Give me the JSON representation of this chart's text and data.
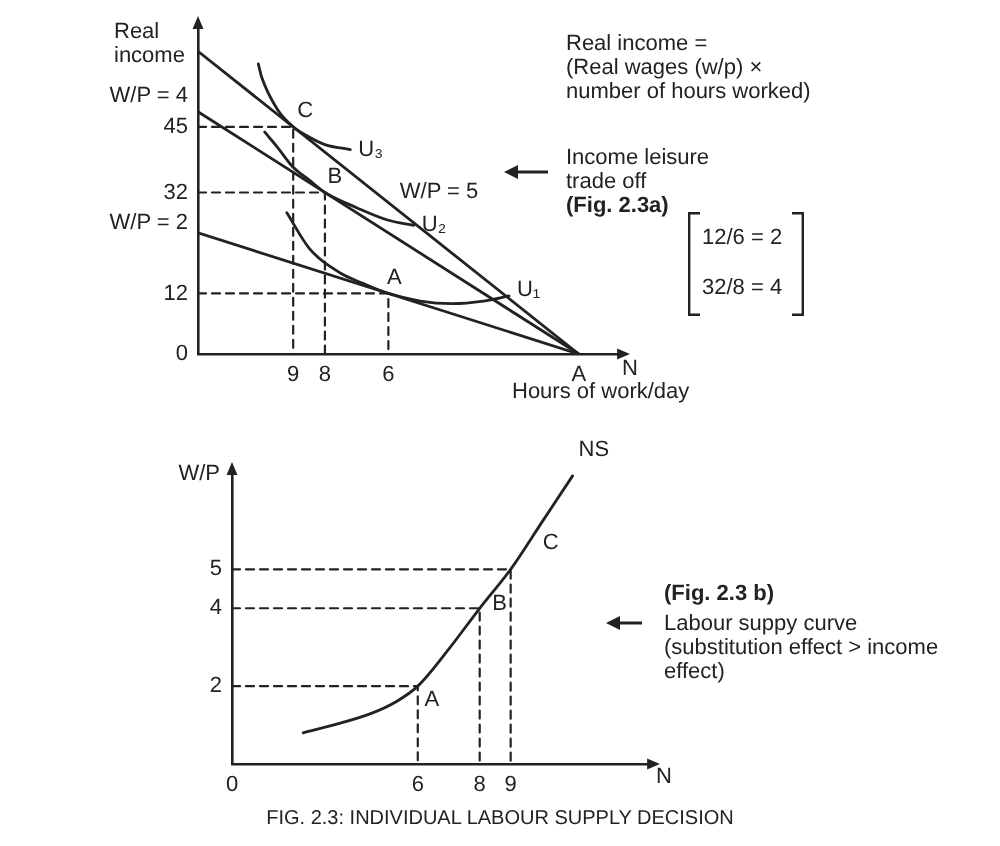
{
  "chart_data": [
    {
      "type": "line",
      "xlabel": "N",
      "ylabel": "Real income",
      "xlim": [
        12,
        -1.3
      ],
      "ylim": [
        0,
        65
      ],
      "xticks": [
        9,
        8,
        6,
        {
          "value": 0,
          "label": "A"
        }
      ],
      "yticks": [
        0,
        12,
        32,
        45
      ],
      "marker": "none",
      "series": [
        {
          "name": "W/P = 5",
          "color": "#222222",
          "x": [
            12,
            0
          ],
          "values": [
            60,
            0
          ]
        },
        {
          "name": "W/P = 4",
          "color": "#222222",
          "x": [
            12,
            0
          ],
          "values": [
            48,
            0
          ]
        },
        {
          "name": "W/P = 2",
          "color": "#222222",
          "x": [
            12,
            0
          ],
          "values": [
            24,
            0
          ]
        },
        {
          "name": "U₃",
          "color": "#222222",
          "x": [
            10.1,
            10,
            9.5,
            9,
            8.5,
            8,
            7.2
          ],
          "values": [
            57.5,
            55,
            48.5,
            45,
            43,
            41.5,
            40.5
          ]
        },
        {
          "name": "U₂",
          "color": "#222222",
          "x": [
            9.9,
            9.5,
            9,
            8.5,
            8,
            7,
            6,
            5.2
          ],
          "values": [
            44,
            41,
            37,
            34.5,
            32,
            29,
            26.5,
            25.5
          ]
        },
        {
          "name": "U₁",
          "color": "#222222",
          "x": [
            9.2,
            8.5,
            7.5,
            6.8,
            6,
            5,
            4,
            3,
            2.2
          ],
          "values": [
            28,
            21,
            16,
            14,
            12,
            10.5,
            10,
            10.5,
            11.5
          ]
        },
        {
          "color": "#222222",
          "line_style": "dashed",
          "x": [
            12,
            9,
            9
          ],
          "values": [
            45,
            45,
            0
          ]
        },
        {
          "color": "#222222",
          "line_style": "dashed",
          "x": [
            12,
            8,
            8
          ],
          "values": [
            32,
            32,
            0
          ]
        },
        {
          "color": "#222222",
          "line_style": "dashed",
          "x": [
            12,
            6,
            6
          ],
          "values": [
            12,
            12,
            0
          ]
        }
      ],
      "annotations": [
        "Hours of work/day",
        "Real income =\n(Real wages (w/p) ×\nnumber of hours worked)",
        "Income leisure\ntrade off",
        "(Fig. 2.3a)",
        "12/6 = 2",
        "32/8 = 4",
        {
          "text": "C",
          "x": 9,
          "y": 45
        },
        {
          "text": "B",
          "x": 8,
          "y": 32
        },
        {
          "text": "A",
          "x": 6,
          "y": 12
        }
      ]
    },
    {
      "type": "line",
      "xlabel": "N",
      "ylabel": "W/P",
      "xlim": [
        0,
        13.5
      ],
      "ylim": [
        0,
        7.5
      ],
      "xticks": [
        0,
        6,
        8,
        9
      ],
      "yticks": [
        2,
        4,
        5
      ],
      "marker": "none",
      "series": [
        {
          "name": "NS",
          "color": "#222222",
          "x": [
            2.3,
            3.5,
            4.5,
            5.3,
            6,
            7,
            8,
            9,
            10,
            11
          ],
          "values": [
            0.8,
            1.05,
            1.3,
            1.6,
            2,
            2.95,
            4,
            5,
            6.2,
            7.4
          ]
        },
        {
          "color": "#222222",
          "line_style": "dashed",
          "x": [
            0,
            6,
            6
          ],
          "values": [
            2,
            2,
            0
          ]
        },
        {
          "color": "#222222",
          "line_style": "dashed",
          "x": [
            0,
            8,
            8
          ],
          "values": [
            4,
            4,
            0
          ]
        },
        {
          "color": "#222222",
          "line_style": "dashed",
          "x": [
            0,
            9,
            9
          ],
          "values": [
            5,
            5,
            0
          ]
        }
      ],
      "annotations": [
        "(Fig. 2.3 b)",
        "Labour suppy curve\n(substitution effect > income\neffect)",
        "FIG. 2.3: INDIVIDUAL LABOUR SUPPLY DECISION",
        {
          "text": "A",
          "x": 6,
          "y": 2
        },
        {
          "text": "B",
          "x": 8,
          "y": 4
        },
        {
          "text": "C",
          "x": 9,
          "y": 5
        }
      ]
    }
  ]
}
